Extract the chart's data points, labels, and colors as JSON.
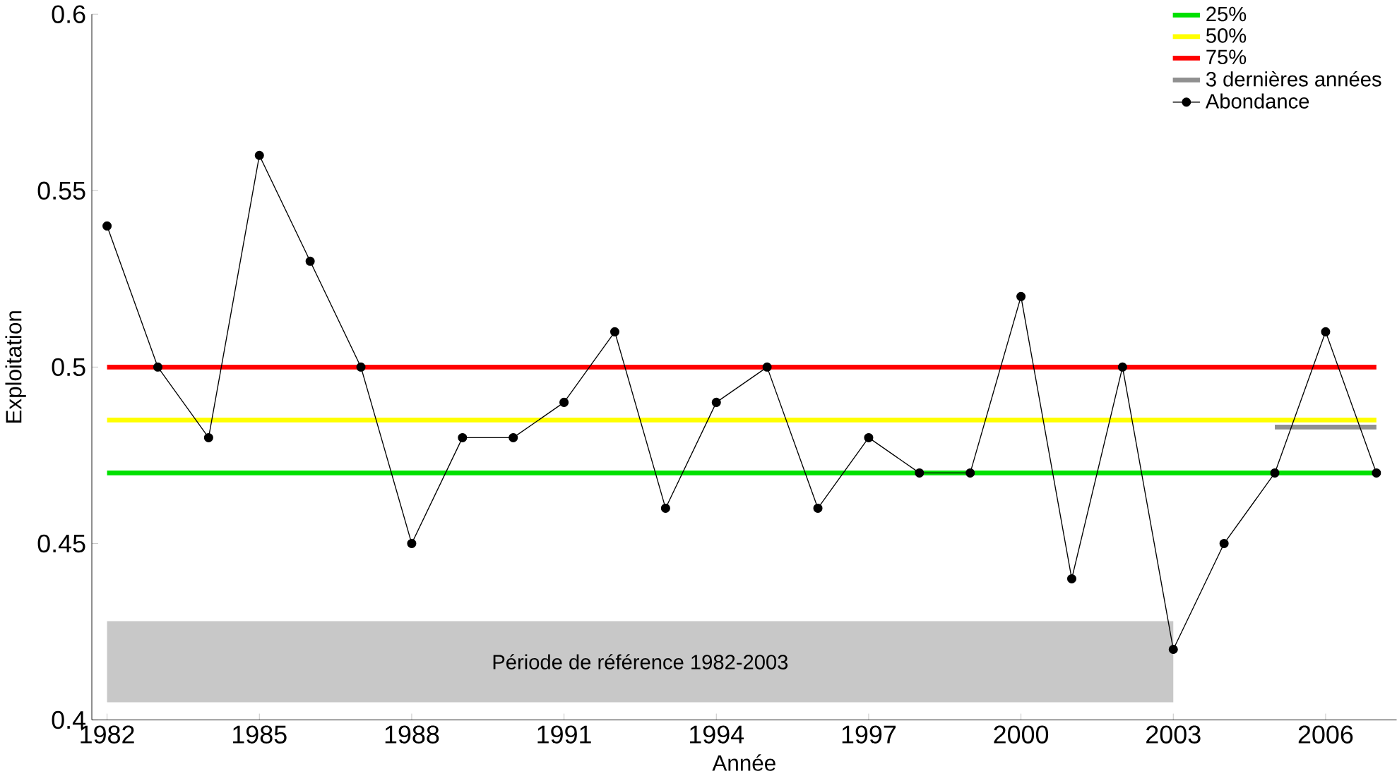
{
  "chart_data": {
    "type": "line",
    "xlabel": "Année",
    "ylabel": "Exploitation",
    "x": [
      1982,
      1983,
      1984,
      1985,
      1986,
      1987,
      1988,
      1989,
      1990,
      1991,
      1992,
      1993,
      1994,
      1995,
      1996,
      1997,
      1998,
      1999,
      2000,
      2001,
      2002,
      2003,
      2004,
      2005,
      2006,
      2007
    ],
    "series": [
      {
        "name": "25%",
        "color": "#00e000",
        "x": [
          1982,
          2007
        ],
        "values": [
          0.47,
          0.47
        ],
        "marker": "none"
      },
      {
        "name": "50%",
        "color": "#ffff00",
        "x": [
          1982,
          2007
        ],
        "values": [
          0.485,
          0.485
        ],
        "marker": "none"
      },
      {
        "name": "75%",
        "color": "#ff0000",
        "x": [
          1982,
          2007
        ],
        "values": [
          0.5,
          0.5
        ],
        "marker": "none"
      },
      {
        "name": "3 dernières années",
        "color": "#909090",
        "x": [
          2005,
          2007
        ],
        "values": [
          0.483,
          0.483
        ],
        "marker": "none"
      },
      {
        "name": "Abondance",
        "color": "#000000",
        "marker": "circle",
        "values": [
          0.54,
          0.5,
          0.48,
          0.56,
          0.53,
          0.5,
          0.45,
          0.48,
          0.48,
          0.49,
          0.51,
          0.46,
          0.49,
          0.5,
          0.46,
          0.48,
          0.47,
          0.47,
          0.52,
          0.44,
          0.5,
          0.42,
          0.45,
          0.47,
          0.51,
          0.47
        ]
      }
    ],
    "bands": [
      {
        "axis": "x",
        "from": 1982,
        "to": 2003,
        "label": "Période de référence 1982-2003",
        "color": "#c8c8c8"
      }
    ],
    "xlim": [
      1981.7,
      2007.4
    ],
    "ylim": [
      0.4,
      0.6
    ],
    "xticks": [
      1982,
      1985,
      1988,
      1991,
      1994,
      1997,
      2000,
      2003,
      2006
    ],
    "yticks": [
      {
        "value": 0.4,
        "label": "0.4"
      },
      {
        "value": 0.45,
        "label": "0.45"
      },
      {
        "value": 0.5,
        "label": "0.5"
      },
      {
        "value": 0.55,
        "label": "0.55"
      },
      {
        "value": 0.6,
        "label": "0.6"
      }
    ],
    "legend": "top right",
    "grid": false
  }
}
